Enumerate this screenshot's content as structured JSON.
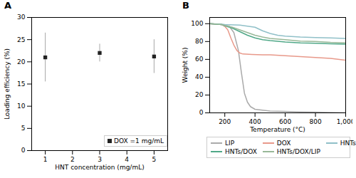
{
  "chart_data": [
    {
      "type": "scatter",
      "title": "A",
      "xlabel": "HNT concentration (mg/mL)",
      "ylabel": "Loading efficiency (%)",
      "x": [
        1,
        3,
        5
      ],
      "series": [
        {
          "name": "DOX =1 mg/mL",
          "color": "#222222",
          "marker": "square",
          "values": [
            21.0,
            22.0,
            21.2
          ],
          "yerr": [
            5.5,
            2.0,
            3.8
          ]
        }
      ],
      "xlim": [
        0.5,
        5.5
      ],
      "xticks": [
        1,
        2,
        3,
        4,
        5
      ],
      "ylim": [
        0,
        30
      ],
      "yticks": [
        0,
        5,
        10,
        15,
        20,
        25,
        30
      ],
      "legend": "lower right"
    },
    {
      "type": "line",
      "title": "B",
      "xlabel": "Temperature (°C)",
      "ylabel": "Weight (%)",
      "series": [
        {
          "name": "LIP",
          "color": "#aaaaaa",
          "x": [
            100,
            180,
            200,
            230,
            260,
            290,
            310,
            330,
            350,
            370,
            400,
            500,
            600,
            700,
            800,
            900,
            1000
          ],
          "values": [
            100,
            99,
            98.5,
            97,
            90,
            70,
            45,
            22,
            12,
            7,
            4,
            2,
            1.5,
            1,
            0.8,
            0.3,
            0
          ]
        },
        {
          "name": "DOX",
          "color": "#e8998a",
          "x": [
            100,
            180,
            200,
            220,
            240,
            260,
            280,
            300,
            320,
            380,
            450,
            500,
            600,
            700,
            800,
            900,
            1000
          ],
          "values": [
            100,
            99,
            97,
            93,
            84,
            76,
            70,
            67,
            66,
            65.5,
            65,
            65,
            64,
            63,
            62,
            61,
            59
          ]
        },
        {
          "name": "HNTs",
          "color": "#90c0c8",
          "x": [
            100,
            180,
            200,
            300,
            400,
            450,
            500,
            550,
            600,
            700,
            800,
            900,
            1000
          ],
          "values": [
            100,
            99.5,
            99,
            98.5,
            96,
            92,
            89,
            87,
            86,
            85,
            84.5,
            84,
            83.5
          ]
        },
        {
          "name": "HNTs/DOX",
          "color": "#50a888",
          "x": [
            100,
            180,
            200,
            250,
            300,
            350,
            400,
            450,
            500,
            600,
            700,
            800,
            900,
            1000
          ],
          "values": [
            100,
            99,
            97.5,
            95,
            91,
            87,
            84,
            82,
            81,
            79.5,
            78.5,
            78,
            77.5,
            77
          ]
        },
        {
          "name": "HNTs/DOX/LIP",
          "color": "#98b898",
          "x": [
            100,
            180,
            200,
            250,
            300,
            350,
            400,
            450,
            500,
            600,
            700,
            800,
            900,
            1000
          ],
          "values": [
            100,
            99,
            98,
            96,
            93,
            90,
            87,
            85,
            83.5,
            82,
            80.5,
            80,
            79,
            78.5
          ]
        }
      ],
      "xlim": [
        100,
        1000
      ],
      "xticks": [
        200,
        400,
        600,
        800,
        {
          "value": 1000,
          "label": "1,000"
        }
      ],
      "ylim": [
        0,
        107
      ],
      "yticks": [
        0,
        20,
        40,
        60,
        80,
        100
      ],
      "legend": "bottom"
    }
  ]
}
